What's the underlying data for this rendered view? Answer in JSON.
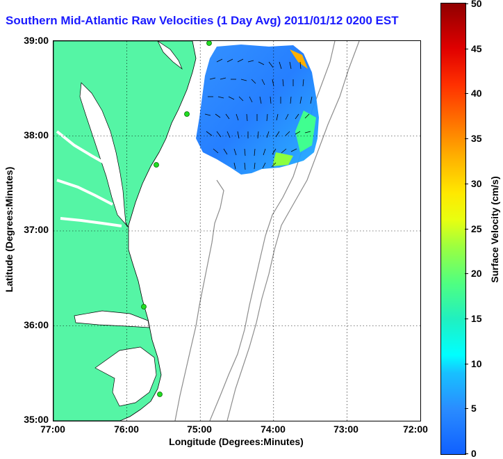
{
  "title": "Southern Mid-Atlantic Raw Velocities (1 Day Avg) 2011/01/12 0200 EST",
  "xlabel": "Longitude (Degrees:Minutes)",
  "ylabel": "Latitude (Degrees:Minutes)",
  "x_ticks": [
    "77:00",
    "76:00",
    "75:00",
    "74:00",
    "73:00",
    "72:00"
  ],
  "y_ticks": [
    "39:00",
    "38:00",
    "37:00",
    "36:00",
    "35:00"
  ],
  "colorbar": {
    "label": "Surface Velocity (cm/s)",
    "ticks": [
      "50",
      "45",
      "40",
      "35",
      "30",
      "25",
      "20",
      "15",
      "10",
      "5",
      "0"
    ],
    "range": [
      0,
      50
    ]
  },
  "colors": {
    "land": "#55f5a5",
    "title": "#1a1aff",
    "bathymetry": "#8c8c8c",
    "station": "#22dd22"
  },
  "stations_count_label": ""
}
